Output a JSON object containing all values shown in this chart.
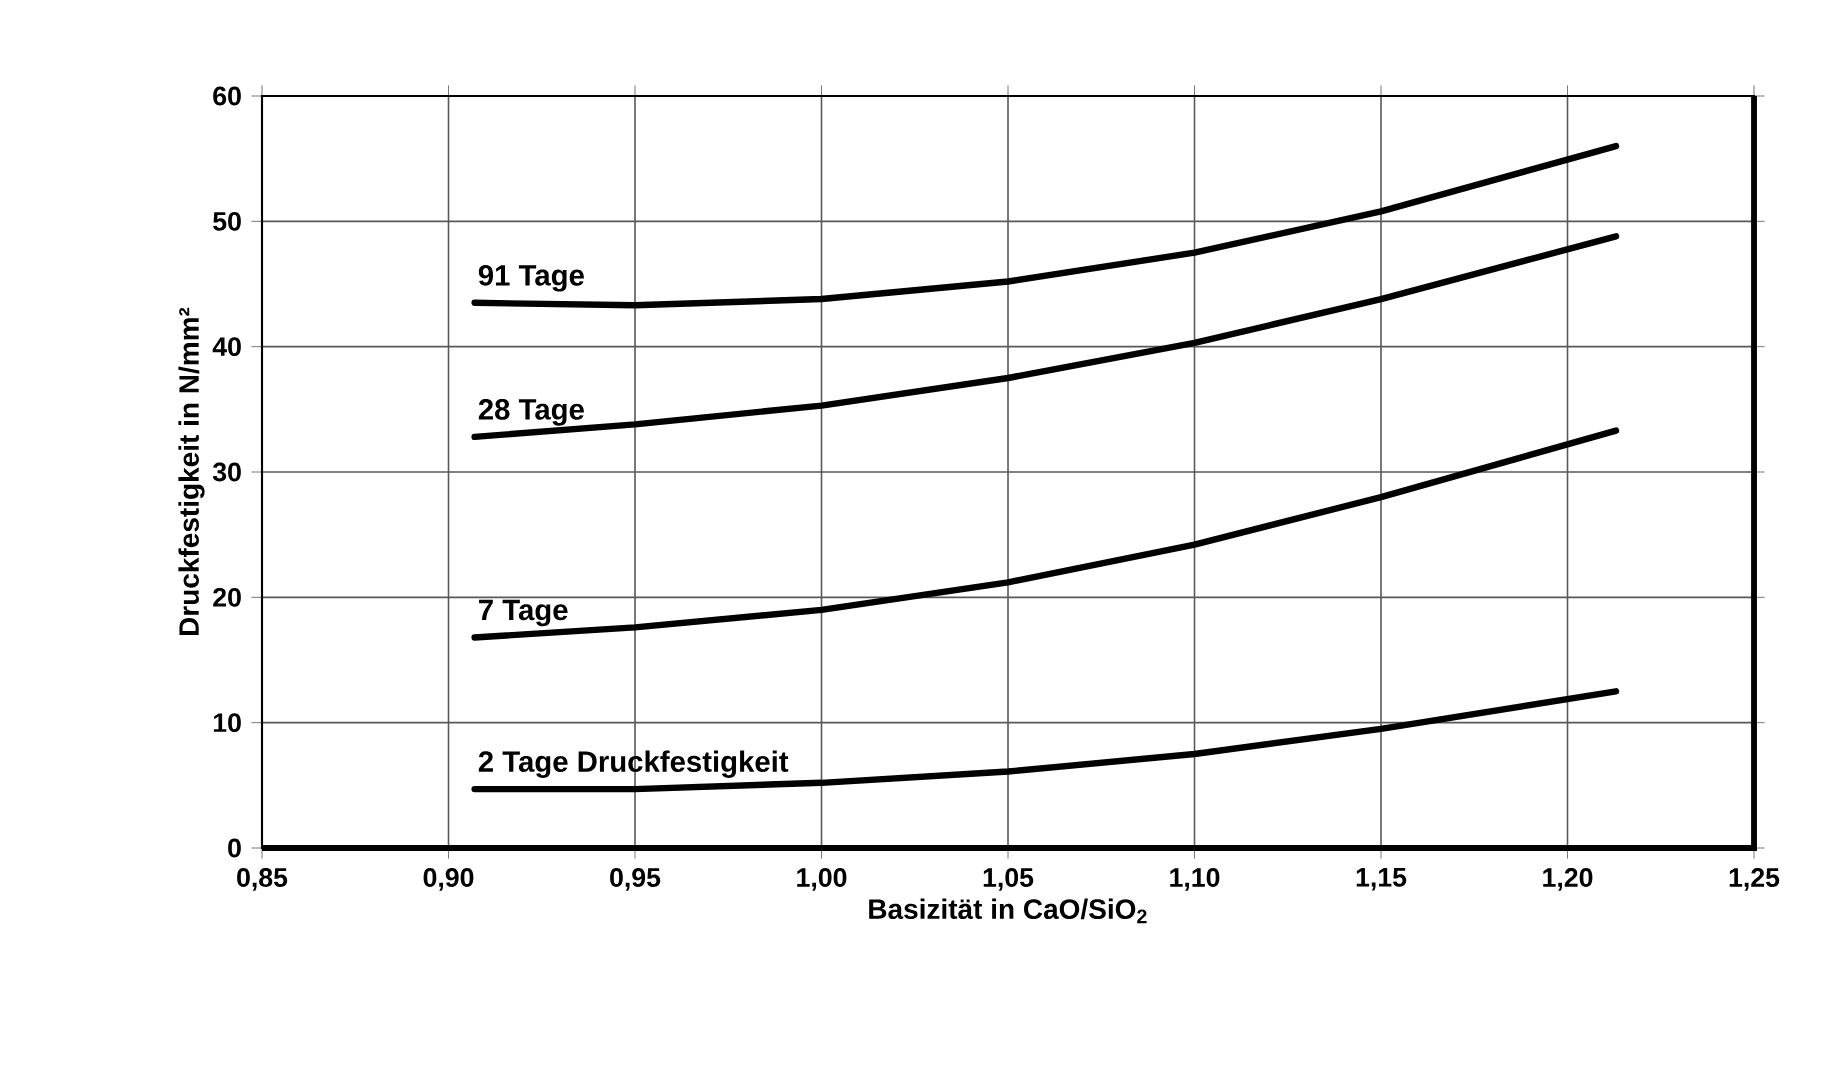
{
  "chart_data": {
    "type": "line",
    "xlabel": "Basizität in CaO/SiO$_{2}$",
    "ylabel": "Druckfestigkeit in N/mm²",
    "x": [
      0.907,
      0.95,
      1.0,
      1.05,
      1.1,
      1.15,
      1.213
    ],
    "series": [
      {
        "name": "91 Tage",
        "color": "#000000",
        "values": [
          43.5,
          43.3,
          43.8,
          45.2,
          47.5,
          50.8,
          56.0
        ]
      },
      {
        "name": "28 Tage",
        "color": "#000000",
        "values": [
          32.8,
          33.8,
          35.3,
          37.5,
          40.3,
          43.8,
          48.8
        ]
      },
      {
        "name": "7 Tage",
        "color": "#000000",
        "values": [
          16.8,
          17.6,
          19.0,
          21.2,
          24.2,
          28.0,
          33.3
        ]
      },
      {
        "name": "2 Tage Druckfestigkeit",
        "color": "#000000",
        "values": [
          4.7,
          4.7,
          5.2,
          6.1,
          7.5,
          9.5,
          12.5
        ]
      }
    ],
    "xlim": [
      0.85,
      1.25
    ],
    "xticks": [
      {
        "value": 0.85,
        "label": "0,85"
      },
      {
        "value": 0.9,
        "label": "0,90"
      },
      {
        "value": 0.95,
        "label": "0,95"
      },
      {
        "value": 1.0,
        "label": "1,00"
      },
      {
        "value": 1.05,
        "label": "1,05"
      },
      {
        "value": 1.1,
        "label": "1,10"
      },
      {
        "value": 1.15,
        "label": "1,15"
      },
      {
        "value": 1.2,
        "label": "1,20"
      },
      {
        "value": 1.25,
        "label": "1,25"
      }
    ],
    "ylim": [
      0,
      60
    ],
    "yticks": [
      0,
      10,
      20,
      30,
      40,
      50,
      60
    ],
    "grid": true,
    "legend": false,
    "marker": "none",
    "line_style": "solid"
  }
}
